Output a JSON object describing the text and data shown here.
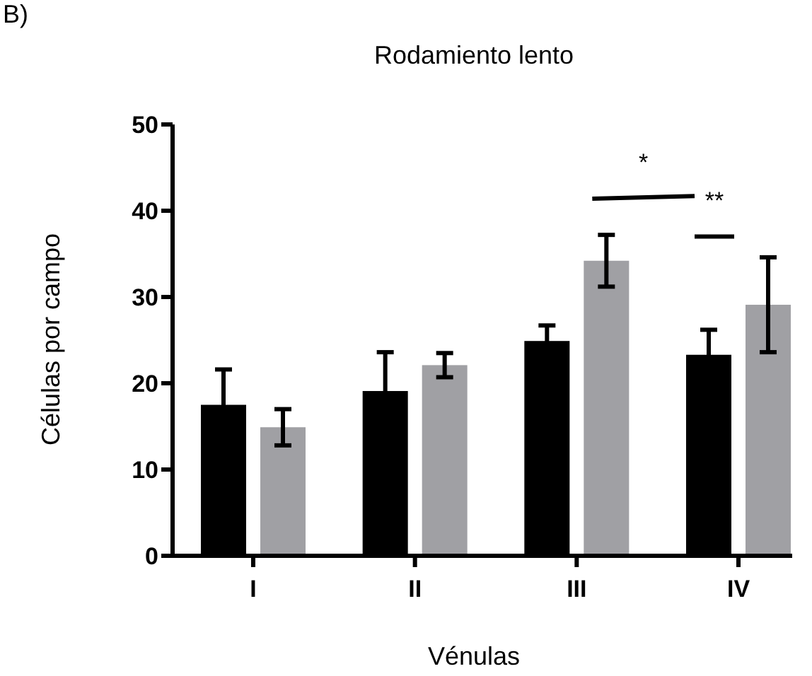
{
  "chart_data": {
    "type": "bar",
    "title": "Rodamiento lento",
    "xlabel": "Vénulas",
    "ylabel": "Células por campo",
    "categories": [
      "I",
      "II",
      "III",
      "IV"
    ],
    "series": [
      {
        "color": "#000000",
        "values": [
          17.5,
          19.1,
          24.9,
          23.3
        ],
        "errors": [
          4.1,
          4.5,
          1.8,
          2.9
        ]
      },
      {
        "color": "#a0a0a4",
        "values": [
          14.9,
          22.1,
          34.2,
          29.1
        ],
        "errors": [
          2.1,
          1.4,
          3.0,
          5.5
        ]
      }
    ],
    "ylim": [
      0,
      50
    ],
    "yticks": [
      0,
      10,
      20,
      30,
      40,
      50
    ],
    "grid": false,
    "annotations": [
      "B)",
      "*",
      "**"
    ]
  }
}
